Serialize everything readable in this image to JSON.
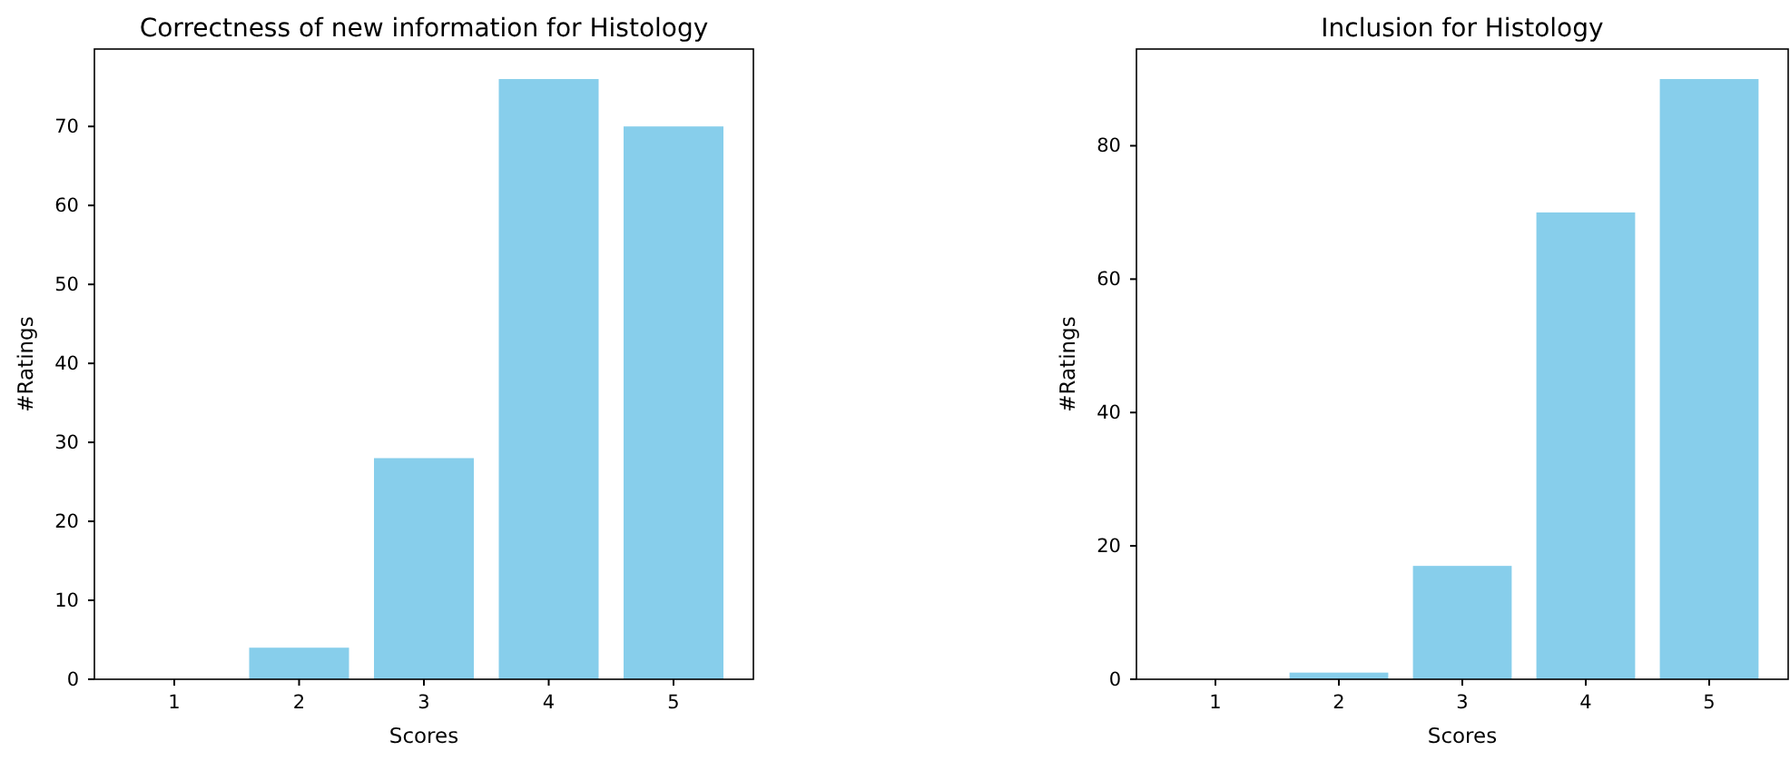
{
  "chart_data": [
    {
      "type": "bar",
      "title": "Correctness of new information for Histology",
      "xlabel": "Scores",
      "ylabel": "#Ratings",
      "categories": [
        "1",
        "2",
        "3",
        "4",
        "5"
      ],
      "values": [
        0,
        4,
        28,
        76,
        70
      ],
      "color": "#87ceeb",
      "ylim": [
        0,
        79.8
      ],
      "yticks": [
        0,
        10,
        20,
        30,
        40,
        50,
        60,
        70
      ]
    },
    {
      "type": "bar",
      "title": "Inclusion for Histology",
      "xlabel": "Scores",
      "ylabel": "#Ratings",
      "categories": [
        "1",
        "2",
        "3",
        "4",
        "5"
      ],
      "values": [
        0,
        1,
        17,
        70,
        90
      ],
      "color": "#87ceeb",
      "ylim": [
        0,
        94.5
      ],
      "yticks": [
        0,
        20,
        40,
        60,
        80
      ]
    }
  ]
}
